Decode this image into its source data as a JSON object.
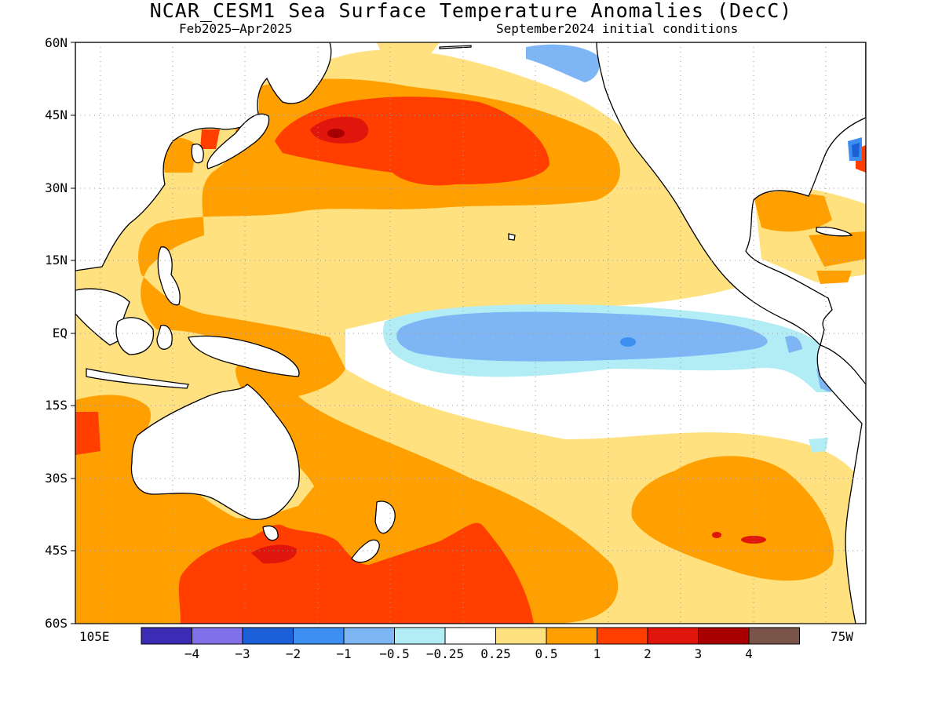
{
  "title": "NCAR_CESM1 Sea Surface Temperature Anomalies (DecC)",
  "subtitle_left": "Feb2025–Apr2025",
  "subtitle_right": "September2024 initial conditions",
  "lat_labels": [
    "60N",
    "45N",
    "30N",
    "15N",
    "EQ",
    "15S",
    "30S",
    "45S",
    "60S"
  ],
  "lon_label_left": "105E",
  "lon_label_right": "75W",
  "colorbar": {
    "labels": [
      "−4",
      "−3",
      "−2",
      "−1",
      "−0.5",
      "−0.25",
      "0.25",
      "0.5",
      "1",
      "2",
      "3",
      "4"
    ],
    "colors": [
      "#3b2bb5",
      "#8270e8",
      "#1c5fd6",
      "#3c8ef0",
      "#7eb6f5",
      "#b2ecf5",
      "#ffffff",
      "#ffe27f",
      "#ffa000",
      "#ff3e00",
      "#e0150b",
      "#a80000",
      "#7a5448"
    ]
  },
  "palette": {
    "land": "#ffffff",
    "coast": "#000000",
    "grid": "#999999"
  }
}
